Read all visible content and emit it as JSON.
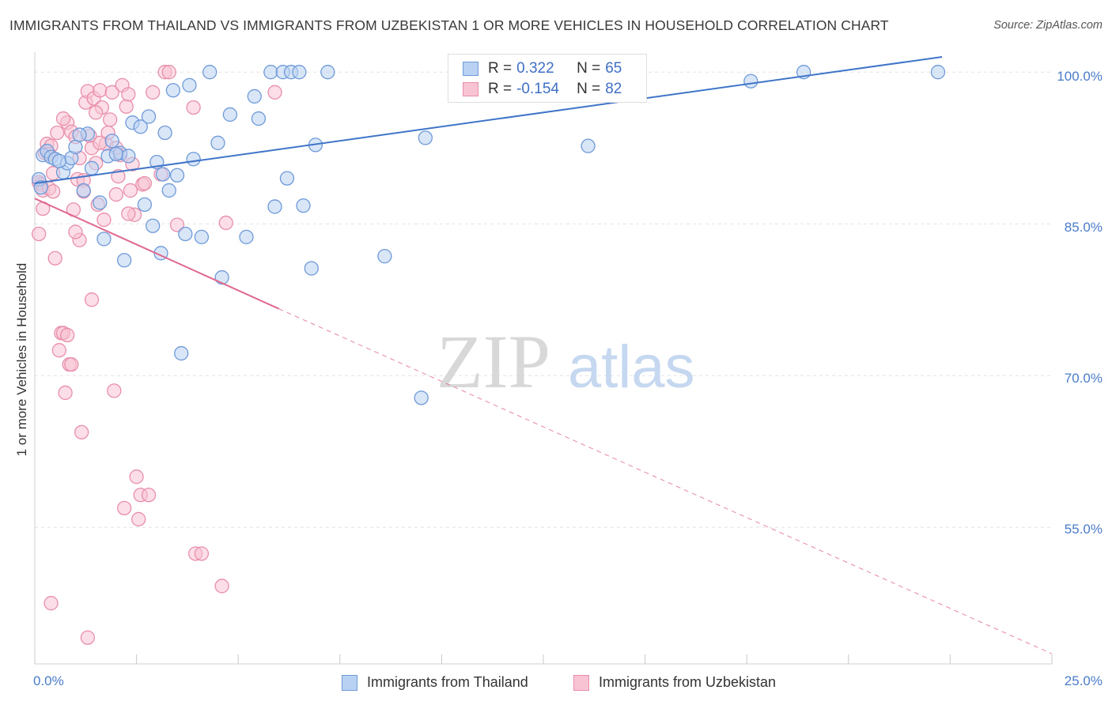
{
  "title": "IMMIGRANTS FROM THAILAND VS IMMIGRANTS FROM UZBEKISTAN 1 OR MORE VEHICLES IN HOUSEHOLD CORRELATION CHART",
  "source": "Source: ZipAtlas.com",
  "watermark": {
    "zip": "ZIP",
    "atlas": "atlas"
  },
  "legend_top": [
    {
      "r_label": "R = ",
      "r_value": "0.322",
      "n_label": "N = ",
      "n_value": "65"
    },
    {
      "r_label": "R = ",
      "r_value": "-0.154",
      "n_label": "N = ",
      "n_value": "82"
    }
  ],
  "colors": {
    "blue_fill": "#b9d1f2",
    "blue_stroke": "#6f9ad8",
    "blue_line": "#3f75c9",
    "pink_fill": "#f8c3d3",
    "pink_stroke": "#e98fab",
    "pink_line": "#e0688f",
    "grid": "#e4e4e4",
    "tick_text": "#4a7cc8"
  },
  "chart_data": {
    "type": "scatter",
    "title": "IMMIGRANTS FROM THAILAND VS IMMIGRANTS FROM UZBEKISTAN 1 OR MORE VEHICLES IN HOUSEHOLD CORRELATION CHART",
    "xlabel": "",
    "ylabel": "1 or more Vehicles in Household",
    "xlim": [
      0,
      25
    ],
    "ylim": [
      41.5,
      101.5
    ],
    "x_tick_labels": [
      "0.0%",
      "25.0%"
    ],
    "y_ticks": [
      100,
      85,
      70,
      55
    ],
    "y_tick_labels": [
      "100.0%",
      "85.0%",
      "70.0%",
      "55.0%"
    ],
    "grid": true,
    "legend_position": "bottom",
    "series": [
      {
        "name": "Immigrants from Thailand",
        "color": "#6f9ad8",
        "R": 0.322,
        "N": 65,
        "trend": {
          "x": [
            0,
            22.3
          ],
          "y": [
            89.0,
            101.5
          ]
        },
        "points": [
          [
            0.2,
            91.8
          ],
          [
            0.3,
            92.2
          ],
          [
            0.4,
            91.6
          ],
          [
            0.5,
            91.4
          ],
          [
            0.7,
            90.1
          ],
          [
            0.8,
            91.0
          ],
          [
            0.9,
            91.5
          ],
          [
            1.0,
            92.6
          ],
          [
            1.2,
            88.3
          ],
          [
            1.3,
            93.9
          ],
          [
            1.4,
            90.5
          ],
          [
            1.6,
            87.1
          ],
          [
            1.7,
            83.5
          ],
          [
            1.8,
            91.7
          ],
          [
            1.9,
            93.2
          ],
          [
            2.1,
            92.0
          ],
          [
            2.2,
            81.4
          ],
          [
            2.3,
            91.7
          ],
          [
            2.4,
            95.0
          ],
          [
            2.6,
            94.6
          ],
          [
            2.7,
            86.9
          ],
          [
            2.8,
            95.6
          ],
          [
            2.9,
            84.8
          ],
          [
            3.0,
            91.1
          ],
          [
            3.1,
            82.1
          ],
          [
            3.2,
            94.0
          ],
          [
            3.3,
            88.3
          ],
          [
            3.4,
            98.2
          ],
          [
            3.5,
            89.8
          ],
          [
            3.6,
            72.2
          ],
          [
            3.7,
            84.0
          ],
          [
            3.8,
            98.7
          ],
          [
            3.9,
            91.4
          ],
          [
            4.1,
            83.7
          ],
          [
            4.3,
            100.0
          ],
          [
            4.5,
            93.0
          ],
          [
            4.6,
            79.7
          ],
          [
            4.8,
            95.8
          ],
          [
            5.2,
            83.7
          ],
          [
            5.4,
            97.6
          ],
          [
            5.5,
            95.4
          ],
          [
            5.8,
            100.0
          ],
          [
            5.9,
            86.7
          ],
          [
            6.1,
            100.0
          ],
          [
            6.2,
            89.5
          ],
          [
            6.3,
            100.0
          ],
          [
            6.5,
            100.0
          ],
          [
            6.6,
            86.8
          ],
          [
            6.8,
            80.6
          ],
          [
            6.9,
            92.8
          ],
          [
            7.2,
            100.0
          ],
          [
            8.6,
            81.8
          ],
          [
            9.5,
            67.8
          ],
          [
            9.6,
            93.5
          ],
          [
            11.1,
            100.0
          ],
          [
            13.6,
            92.7
          ],
          [
            17.6,
            99.1
          ],
          [
            18.9,
            100.0
          ],
          [
            22.2,
            100.0
          ],
          [
            0.1,
            89.4
          ],
          [
            0.15,
            88.6
          ],
          [
            0.6,
            91.2
          ],
          [
            1.1,
            93.8
          ],
          [
            2.0,
            91.9
          ],
          [
            3.15,
            89.9
          ]
        ]
      },
      {
        "name": "Immigrants from Uzbekistan",
        "color": "#e98fab",
        "R": -0.154,
        "N": 82,
        "trend_solid": {
          "x": [
            0,
            6.0
          ],
          "y": [
            87.5,
            76.6
          ]
        },
        "trend_dashed": {
          "x": [
            6.0,
            25.0
          ],
          "y": [
            76.6,
            42.5
          ]
        },
        "points": [
          [
            0.1,
            89.1
          ],
          [
            0.15,
            88.9
          ],
          [
            0.2,
            88.3
          ],
          [
            0.25,
            92.0
          ],
          [
            0.3,
            92.9
          ],
          [
            0.35,
            88.5
          ],
          [
            0.4,
            92.7
          ],
          [
            0.45,
            88.2
          ],
          [
            0.5,
            81.6
          ],
          [
            0.55,
            94.0
          ],
          [
            0.6,
            72.5
          ],
          [
            0.65,
            74.2
          ],
          [
            0.7,
            74.2
          ],
          [
            0.75,
            68.3
          ],
          [
            0.8,
            95.0
          ],
          [
            0.85,
            71.1
          ],
          [
            0.9,
            94.1
          ],
          [
            0.95,
            86.4
          ],
          [
            1.0,
            93.6
          ],
          [
            1.05,
            89.4
          ],
          [
            1.1,
            83.4
          ],
          [
            1.15,
            64.4
          ],
          [
            1.2,
            89.3
          ],
          [
            1.25,
            97.0
          ],
          [
            1.3,
            98.1
          ],
          [
            1.35,
            93.7
          ],
          [
            1.4,
            77.5
          ],
          [
            1.45,
            97.4
          ],
          [
            1.5,
            91.0
          ],
          [
            1.55,
            86.9
          ],
          [
            1.6,
            98.2
          ],
          [
            1.65,
            96.5
          ],
          [
            1.7,
            85.4
          ],
          [
            1.75,
            92.9
          ],
          [
            1.8,
            94.0
          ],
          [
            1.85,
            95.3
          ],
          [
            1.9,
            98.0
          ],
          [
            1.95,
            68.5
          ],
          [
            2.0,
            87.9
          ],
          [
            2.05,
            89.7
          ],
          [
            2.1,
            91.8
          ],
          [
            2.15,
            98.7
          ],
          [
            2.2,
            56.9
          ],
          [
            2.25,
            96.6
          ],
          [
            2.3,
            97.8
          ],
          [
            2.35,
            88.3
          ],
          [
            2.4,
            90.9
          ],
          [
            2.45,
            85.9
          ],
          [
            2.5,
            60.0
          ],
          [
            2.55,
            55.8
          ],
          [
            2.6,
            58.2
          ],
          [
            2.65,
            88.9
          ],
          [
            2.7,
            89.0
          ],
          [
            2.8,
            58.2
          ],
          [
            2.9,
            98.0
          ],
          [
            3.1,
            89.9
          ],
          [
            3.2,
            100.0
          ],
          [
            3.3,
            100.0
          ],
          [
            3.5,
            84.9
          ],
          [
            3.9,
            96.5
          ],
          [
            3.95,
            52.4
          ],
          [
            4.1,
            52.4
          ],
          [
            4.6,
            49.2
          ],
          [
            4.7,
            85.1
          ],
          [
            5.9,
            98.0
          ],
          [
            0.4,
            47.5
          ],
          [
            1.3,
            44.1
          ],
          [
            0.1,
            84.0
          ],
          [
            0.2,
            86.5
          ],
          [
            0.35,
            91.9
          ],
          [
            0.45,
            90.0
          ],
          [
            0.9,
            71.1
          ],
          [
            1.2,
            88.2
          ],
          [
            1.4,
            92.5
          ],
          [
            0.7,
            95.4
          ],
          [
            1.0,
            84.2
          ],
          [
            1.6,
            93.0
          ],
          [
            2.3,
            86.0
          ],
          [
            0.8,
            74.0
          ],
          [
            1.1,
            91.5
          ],
          [
            1.5,
            96.0
          ],
          [
            2.0,
            92.5
          ]
        ]
      }
    ]
  }
}
